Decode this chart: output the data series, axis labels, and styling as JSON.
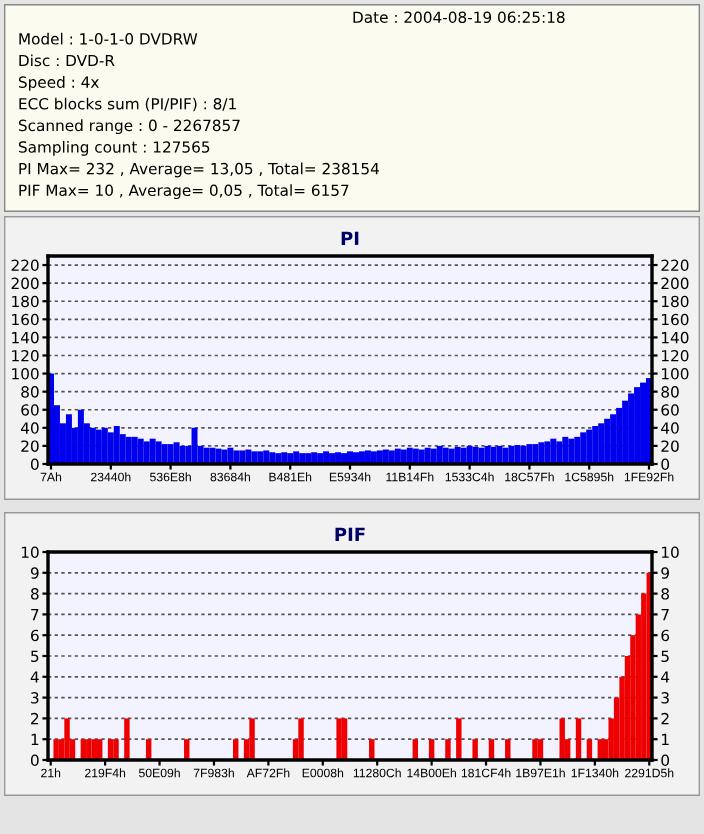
{
  "chart_data": [
    {
      "type": "other",
      "annotations": [
        "Date : 2004-08-19 06:25:18",
        "Model : 1-0-1-0 DVDRW",
        "Disc : DVD-R",
        "Speed : 4x",
        "ECC blocks sum (PI/PIF) : 8/1",
        "Scanned range : 0 - 2267857",
        "Sampling count : 127565",
        "PI Max= 232 , Average= 13,05 , Total= 238154",
        "PIF Max= 10 , Average= 0,05 , Total= 6157"
      ]
    },
    {
      "type": "bar",
      "title": "PI",
      "color": "#0000ee",
      "categories": [
        "7Ah",
        null,
        null,
        null,
        null,
        null,
        null,
        null,
        null,
        null,
        "23440h",
        null,
        null,
        null,
        null,
        null,
        null,
        null,
        null,
        null,
        "536E8h",
        null,
        null,
        null,
        null,
        null,
        null,
        null,
        null,
        null,
        "83684h",
        null,
        null,
        null,
        null,
        null,
        null,
        null,
        null,
        null,
        "B481Eh",
        null,
        null,
        null,
        null,
        null,
        null,
        null,
        null,
        null,
        "E5934h",
        null,
        null,
        null,
        null,
        null,
        null,
        null,
        null,
        null,
        "11B14Fh",
        null,
        null,
        null,
        null,
        null,
        null,
        null,
        null,
        null,
        "1533C4h",
        null,
        null,
        null,
        null,
        null,
        null,
        null,
        null,
        null,
        "18C57Fh",
        null,
        null,
        null,
        null,
        null,
        null,
        null,
        null,
        null,
        "1C5895h",
        null,
        null,
        null,
        null,
        null,
        null,
        null,
        null,
        null,
        "1FE92Fh"
      ],
      "values": [
        100,
        65,
        45,
        55,
        40,
        60,
        45,
        40,
        38,
        40,
        35,
        42,
        33,
        30,
        30,
        28,
        25,
        28,
        25,
        22,
        22,
        24,
        20,
        20,
        40,
        20,
        18,
        18,
        17,
        16,
        18,
        15,
        15,
        16,
        14,
        14,
        15,
        13,
        12,
        13,
        12,
        14,
        12,
        12,
        13,
        12,
        14,
        12,
        13,
        12,
        14,
        13,
        14,
        15,
        14,
        15,
        16,
        15,
        17,
        16,
        18,
        17,
        16,
        18,
        17,
        20,
        18,
        17,
        19,
        18,
        20,
        19,
        18,
        20,
        19,
        20,
        18,
        20,
        21,
        20,
        22,
        22,
        24,
        25,
        28,
        25,
        30,
        28,
        30,
        35,
        38,
        42,
        45,
        50,
        55,
        62,
        70,
        78,
        85,
        90,
        95
      ],
      "ylim": [
        0,
        230
      ],
      "yticks": [
        0,
        20,
        40,
        60,
        80,
        100,
        120,
        140,
        160,
        180,
        200,
        220
      ],
      "y2lim": [
        0,
        230
      ],
      "y2ticks": [
        0,
        20,
        40,
        60,
        80,
        100,
        120,
        140,
        160,
        180,
        200,
        220
      ],
      "grid": "y"
    },
    {
      "type": "bar",
      "title": "PIF",
      "color": "#ee0000",
      "categories": [
        "21h",
        null,
        null,
        null,
        null,
        null,
        null,
        null,
        null,
        null,
        "219F4h",
        null,
        null,
        null,
        null,
        null,
        null,
        null,
        null,
        null,
        "50E09h",
        null,
        null,
        null,
        null,
        null,
        null,
        null,
        null,
        null,
        "7F983h",
        null,
        null,
        null,
        null,
        null,
        null,
        null,
        null,
        null,
        "AF72Fh",
        null,
        null,
        null,
        null,
        null,
        null,
        null,
        null,
        null,
        "E0008h",
        null,
        null,
        null,
        null,
        null,
        null,
        null,
        null,
        null,
        "11280Ch",
        null,
        null,
        null,
        null,
        null,
        null,
        null,
        null,
        null,
        "14B00Eh",
        null,
        null,
        null,
        null,
        null,
        null,
        null,
        null,
        null,
        "181CF4h",
        null,
        null,
        null,
        null,
        null,
        null,
        null,
        null,
        null,
        "1B97E1h",
        null,
        null,
        null,
        null,
        null,
        null,
        null,
        null,
        null,
        "1F1340h",
        null,
        null,
        null,
        null,
        null,
        null,
        null,
        null,
        null,
        "2291D5h"
      ],
      "values": [
        0,
        1,
        1,
        2,
        1,
        0,
        1,
        1,
        1,
        1,
        0,
        1,
        1,
        0,
        2,
        0,
        0,
        0,
        1,
        0,
        0,
        0,
        0,
        0,
        0,
        1,
        0,
        0,
        0,
        0,
        0,
        0,
        0,
        0,
        1,
        0,
        1,
        2,
        0,
        0,
        0,
        0,
        0,
        0,
        0,
        1,
        2,
        0,
        0,
        0,
        0,
        0,
        0,
        2,
        2,
        0,
        0,
        0,
        0,
        1,
        0,
        0,
        0,
        0,
        0,
        0,
        0,
        1,
        0,
        0,
        1,
        0,
        0,
        1,
        0,
        2,
        0,
        0,
        1,
        0,
        0,
        1,
        0,
        0,
        1,
        0,
        0,
        0,
        0,
        1,
        1,
        0,
        0,
        0,
        2,
        1,
        0,
        2,
        0,
        1,
        0,
        1,
        1,
        2,
        3,
        4,
        5,
        6,
        7,
        8,
        9
      ],
      "ylim": [
        0,
        10
      ],
      "yticks": [
        0,
        1,
        2,
        3,
        4,
        5,
        6,
        7,
        8,
        9,
        10
      ],
      "y2lim": [
        0,
        10
      ],
      "y2ticks": [
        0,
        1,
        2,
        3,
        4,
        5,
        6,
        7,
        8,
        9,
        10
      ],
      "grid": "y"
    }
  ]
}
